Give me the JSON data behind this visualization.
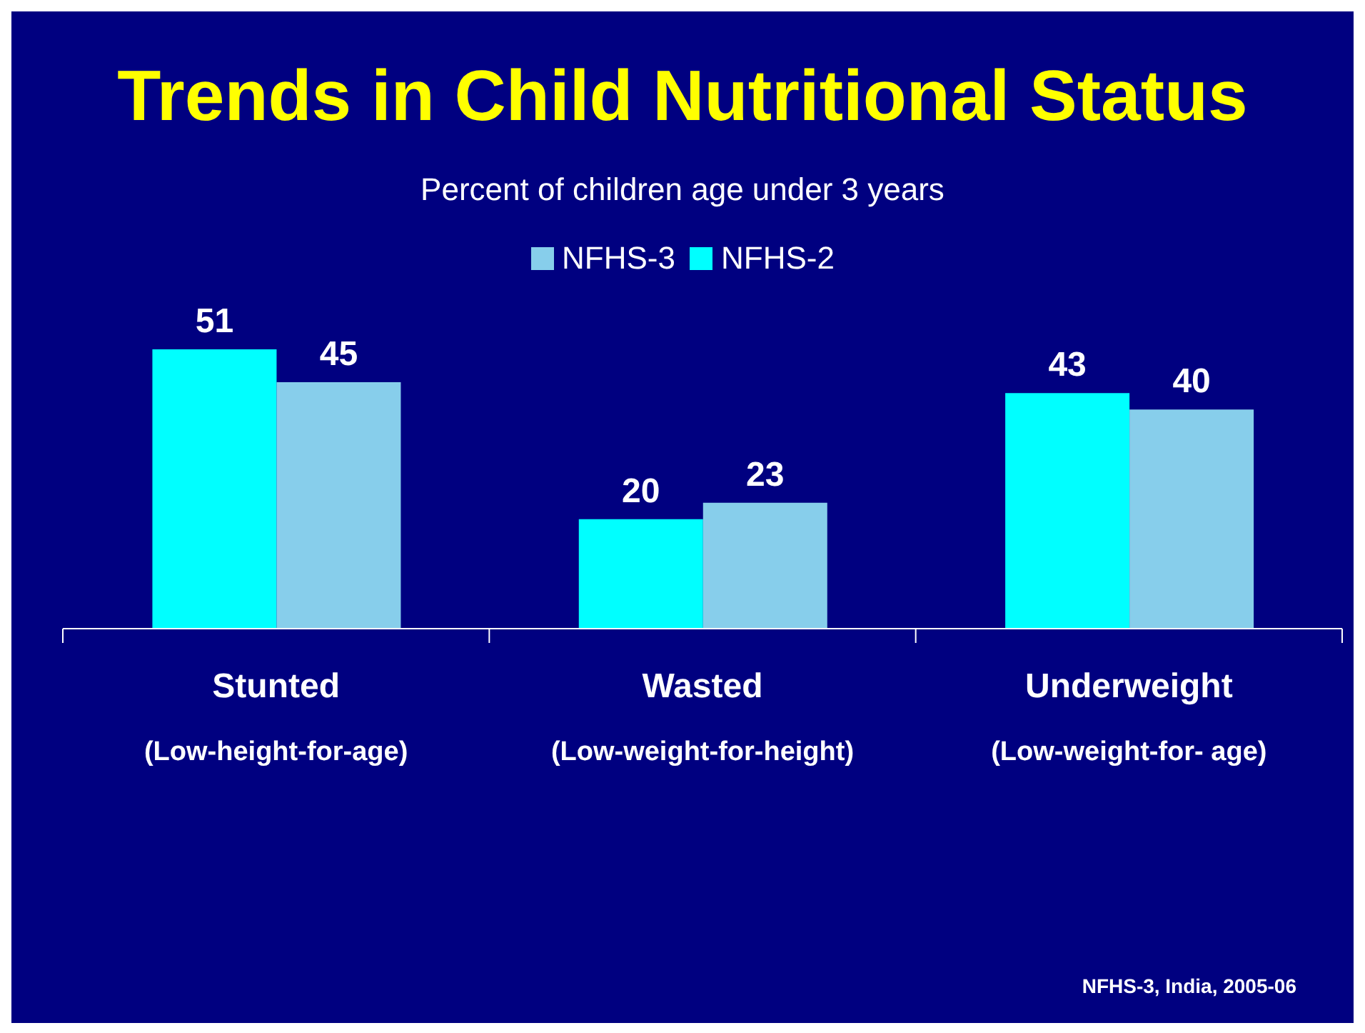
{
  "chart_data": {
    "type": "bar",
    "title": "Trends in Child Nutritional Status",
    "subtitle": "Percent of children age under 3 years",
    "categories": [
      "Stunted\n(Low-height-for-age)",
      "Wasted\n(Low-weight-for-height)",
      "Underweight\n(Low-weight-for- age)"
    ],
    "series": [
      {
        "name": "NFHS-2",
        "color": "#00ffff",
        "values": [
          51,
          20,
          43
        ]
      },
      {
        "name": "NFHS-3",
        "color": "#87ceeb",
        "values": [
          45,
          23,
          40
        ]
      }
    ],
    "data_labels": true,
    "legend": "top",
    "annotations": [
      "NFHS-3, India, 2005-06"
    ]
  }
}
